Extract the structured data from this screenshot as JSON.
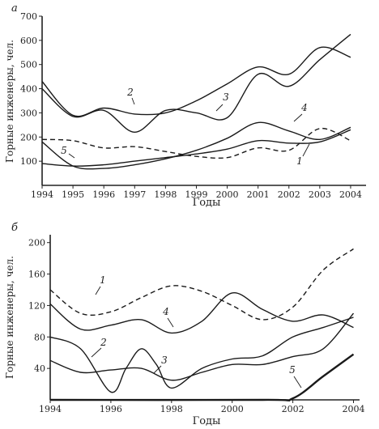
{
  "chart_data": [
    {
      "type": "line",
      "panel_label": "а",
      "xlabel": "Годы",
      "ylabel": "Горные инженеры, чел.",
      "xlim": [
        1994,
        2004.5
      ],
      "ylim": [
        0,
        700
      ],
      "xticks": [
        1994,
        1995,
        1996,
        1997,
        1998,
        1999,
        2000,
        2001,
        2002,
        2003,
        2004
      ],
      "yticks": [
        100,
        200,
        300,
        400,
        500,
        600,
        700
      ],
      "grid": false,
      "series": [
        {
          "name": "1",
          "style": "solid",
          "x": [
            1994,
            1995,
            1996,
            1997,
            1998,
            1999,
            2000,
            2001,
            2002,
            2003,
            2004
          ],
          "y": [
            90,
            80,
            85,
            100,
            115,
            130,
            150,
            185,
            175,
            180,
            230
          ]
        },
        {
          "name": "2",
          "style": "solid",
          "x": [
            1994,
            1995,
            1996,
            1997,
            1998,
            1999,
            2000,
            2001,
            2002,
            2003,
            2004
          ],
          "y": [
            430,
            290,
            320,
            295,
            300,
            350,
            420,
            490,
            460,
            570,
            530
          ]
        },
        {
          "name": "3",
          "style": "solid",
          "x": [
            1994,
            1995,
            1996,
            1997,
            1998,
            1999,
            2000,
            2001,
            2002,
            2003,
            2004
          ],
          "y": [
            400,
            285,
            310,
            220,
            310,
            300,
            280,
            460,
            410,
            520,
            625
          ]
        },
        {
          "name": "4",
          "style": "solid",
          "x": [
            1994,
            1995,
            1996,
            1997,
            1998,
            1999,
            2000,
            2001,
            2002,
            2003,
            2004
          ],
          "y": [
            180,
            80,
            70,
            85,
            110,
            145,
            195,
            260,
            225,
            190,
            240
          ]
        },
        {
          "name": "5",
          "style": "dashed",
          "x": [
            1994,
            1995,
            1996,
            1997,
            1998,
            1999,
            2000,
            2001,
            2002,
            2003,
            2004
          ],
          "y": [
            190,
            185,
            155,
            160,
            140,
            120,
            115,
            155,
            145,
            235,
            185
          ]
        }
      ]
    },
    {
      "type": "line",
      "panel_label": "б",
      "xlabel": "Годы",
      "ylabel": "Горные инженеры, чел.",
      "xlim": [
        1994,
        2004.2
      ],
      "ylim": [
        0,
        210
      ],
      "xticks": [
        1994,
        1996,
        1998,
        2000,
        2002,
        2004
      ],
      "yticks": [
        40,
        80,
        120,
        160,
        200
      ],
      "grid": false,
      "series": [
        {
          "name": "1",
          "style": "dashed",
          "x": [
            1994,
            1995,
            1996,
            1997,
            1998,
            1999,
            2000,
            2001,
            2002,
            2003,
            2004
          ],
          "y": [
            140,
            110,
            112,
            130,
            145,
            138,
            120,
            102,
            118,
            165,
            192
          ]
        },
        {
          "name": "2",
          "style": "solid",
          "x": [
            1994,
            1995,
            1996,
            1996.5,
            1997,
            1997.5,
            1998,
            1999,
            2000,
            2001,
            2002,
            2003,
            2004
          ],
          "y": [
            80,
            65,
            10,
            40,
            65,
            45,
            15,
            40,
            52,
            56,
            80,
            92,
            105
          ]
        },
        {
          "name": "3",
          "style": "solid",
          "x": [
            1994,
            1995,
            1996,
            1997,
            1998,
            1999,
            2000,
            2001,
            2002,
            2003,
            2004
          ],
          "y": [
            50,
            35,
            38,
            40,
            25,
            35,
            45,
            45,
            55,
            65,
            110
          ]
        },
        {
          "name": "4",
          "style": "solid",
          "x": [
            1994,
            1995,
            1996,
            1997,
            1998,
            1999,
            2000,
            2001,
            2002,
            2003,
            2004
          ],
          "y": [
            122,
            90,
            95,
            102,
            85,
            100,
            136,
            115,
            100,
            108,
            92
          ]
        },
        {
          "name": "5",
          "style": "heavy",
          "x": [
            1994,
            2001,
            2002,
            2003,
            2004
          ],
          "y": [
            0,
            0,
            2,
            30,
            58
          ]
        }
      ]
    }
  ]
}
